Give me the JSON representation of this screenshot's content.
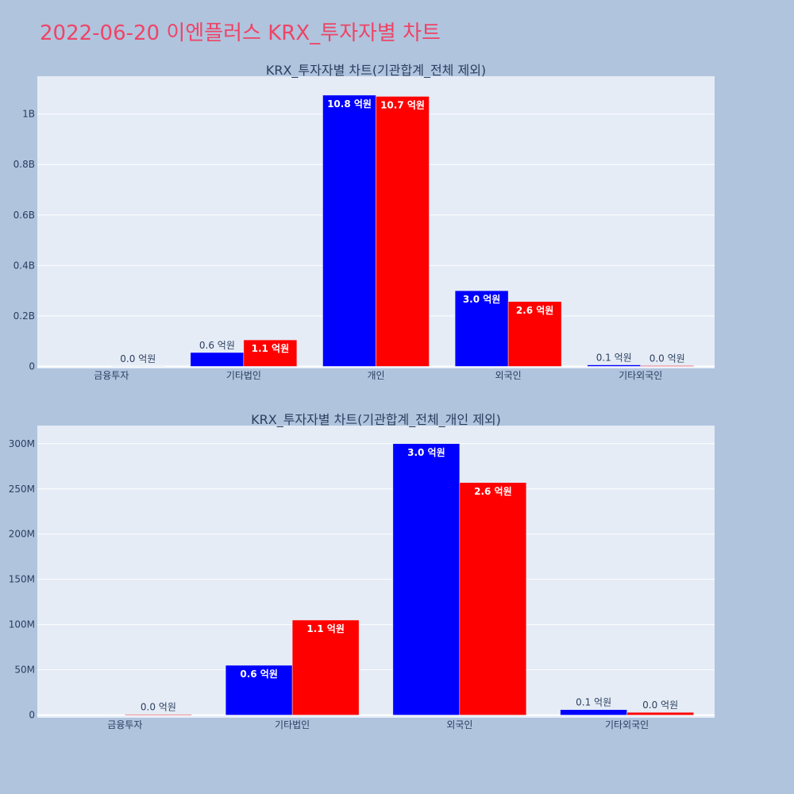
{
  "page": {
    "title": "2022-06-20 이엔플러스 KRX_투자자별 차트",
    "colors": {
      "page_background": "#b0c4de",
      "plot_background": "#e5ecf6",
      "title_color": "#ee4466",
      "series_1": "#0000ff",
      "series_2": "#ff0000"
    }
  },
  "chart_data": [
    {
      "type": "bar",
      "title": "KRX_투자자별 차트(기관합계_전체 제외)",
      "categories": [
        "금융투자",
        "기타법인",
        "개인",
        "외국인",
        "기타외국인"
      ],
      "series": [
        {
          "color": "#0000ff",
          "values": [
            0,
            55000000,
            1075000000,
            300000000,
            6000000
          ],
          "labels": [
            "",
            "0.6 억원",
            "10.8 억원",
            "3.0 억원",
            "0.1 억원"
          ]
        },
        {
          "color": "#ff0000",
          "values": [
            800000,
            105000000,
            1070000000,
            257000000,
            3000000
          ],
          "labels": [
            "0.0 억원",
            "1.1 억원",
            "10.7 억원",
            "2.6 억원",
            "0.0 억원"
          ]
        }
      ],
      "ylim": [
        -8000000,
        1150000000
      ],
      "yticks": [
        0,
        200000000,
        400000000,
        600000000,
        800000000,
        1000000000
      ],
      "ytick_labels": [
        "0",
        "0.2B",
        "0.4B",
        "0.6B",
        "0.8B",
        "1B"
      ],
      "grid": true,
      "legend": "none"
    },
    {
      "type": "bar",
      "title": "KRX_투자자별 차트(기관합계_전체_개인 제외)",
      "categories": [
        "금융투자",
        "기타법인",
        "외국인",
        "기타외국인"
      ],
      "series": [
        {
          "color": "#0000ff",
          "values": [
            0,
            55000000,
            300000000,
            6000000
          ],
          "labels": [
            "",
            "0.6 억원",
            "3.0 억원",
            "0.1 억원"
          ]
        },
        {
          "color": "#ff0000",
          "values": [
            800000,
            105000000,
            257000000,
            3000000
          ],
          "labels": [
            "0.0 억원",
            "1.1 억원",
            "2.6 억원",
            "0.0 억원"
          ]
        }
      ],
      "ylim": [
        -3000000,
        320000000
      ],
      "yticks": [
        0,
        50000000,
        100000000,
        150000000,
        200000000,
        250000000,
        300000000
      ],
      "ytick_labels": [
        "0",
        "50M",
        "100M",
        "150M",
        "200M",
        "250M",
        "300M"
      ],
      "grid": true,
      "legend": "none"
    }
  ]
}
